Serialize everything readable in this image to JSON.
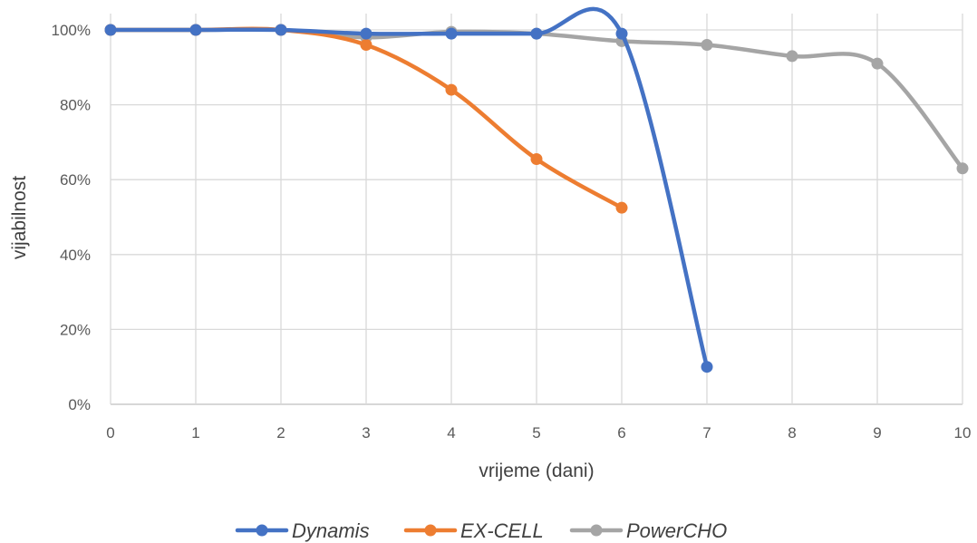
{
  "chart_data": {
    "type": "line",
    "smooth": true,
    "xlabel": "vrijeme (dani)",
    "ylabel": "vijabilnost",
    "x_ticks": [
      "0",
      "1",
      "2",
      "3",
      "4",
      "5",
      "6",
      "7",
      "8",
      "9",
      "10"
    ],
    "y_ticks": [
      "0%",
      "20%",
      "40%",
      "60%",
      "80%",
      "100%"
    ],
    "xlim": [
      0,
      10
    ],
    "ylim": [
      0,
      100
    ],
    "grid": true,
    "legend_position": "bottom",
    "series": [
      {
        "name": "Dynamis",
        "color": "#4472C4",
        "x": [
          0,
          1,
          2,
          3,
          4,
          5,
          6,
          7
        ],
        "y": [
          100,
          100,
          100,
          99,
          99,
          99,
          99,
          10
        ]
      },
      {
        "name": "EX-CELL",
        "color": "#ED7D31",
        "x": [
          0,
          1,
          2,
          3,
          4,
          5,
          6
        ],
        "y": [
          100,
          100,
          100,
          96,
          84,
          65.5,
          52.5
        ]
      },
      {
        "name": "PowerCHO",
        "color": "#A5A5A5",
        "x": [
          0,
          1,
          2,
          3,
          4,
          5,
          6,
          7,
          8,
          9,
          10
        ],
        "y": [
          100,
          100,
          100,
          98,
          99.5,
          99,
          97,
          96,
          93,
          91,
          63
        ]
      }
    ]
  }
}
